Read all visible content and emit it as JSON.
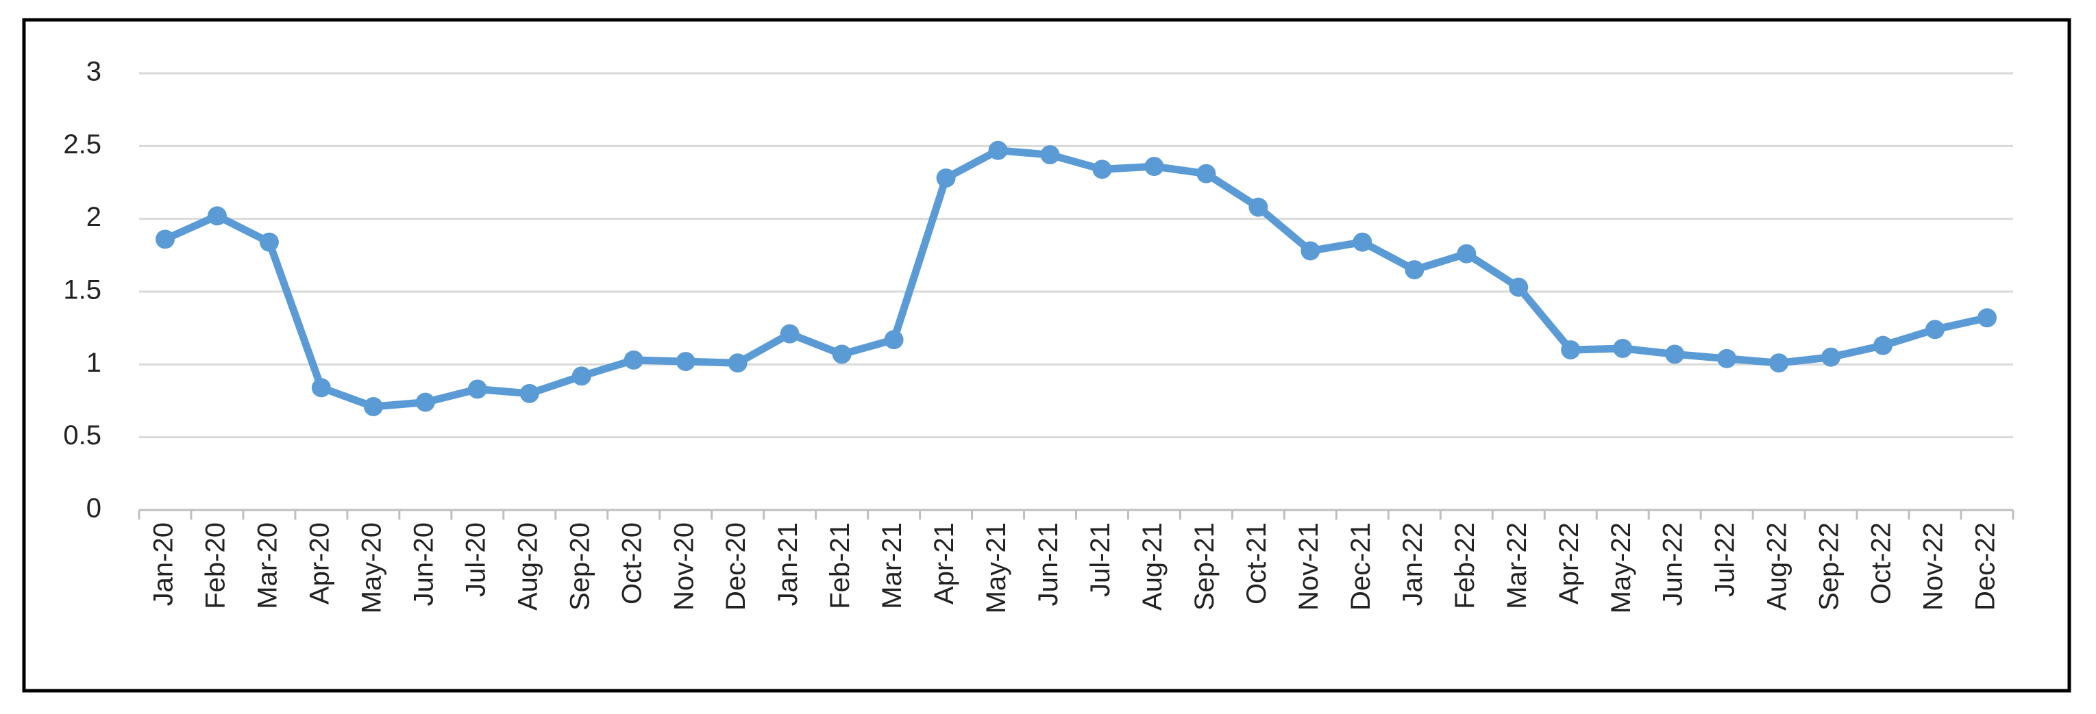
{
  "chart_data": {
    "type": "line",
    "categories": [
      "Jan-20",
      "Feb-20",
      "Mar-20",
      "Apr-20",
      "May-20",
      "Jun-20",
      "Jul-20",
      "Aug-20",
      "Sep-20",
      "Oct-20",
      "Nov-20",
      "Dec-20",
      "Jan-21",
      "Feb-21",
      "Mar-21",
      "Apr-21",
      "May-21",
      "Jun-21",
      "Jul-21",
      "Aug-21",
      "Sep-21",
      "Oct-21",
      "Nov-21",
      "Dec-21",
      "Jan-22",
      "Feb-22",
      "Mar-22",
      "Apr-22",
      "May-22",
      "Jun-22",
      "Jul-22",
      "Aug-22",
      "Sep-22",
      "Oct-22",
      "Nov-22",
      "Dec-22"
    ],
    "values": [
      1.86,
      2.02,
      1.84,
      0.84,
      0.71,
      0.74,
      0.83,
      0.8,
      0.92,
      1.03,
      1.02,
      1.01,
      1.21,
      1.07,
      1.17,
      2.28,
      2.47,
      2.44,
      2.34,
      2.36,
      2.31,
      2.08,
      1.78,
      1.84,
      1.65,
      1.76,
      1.53,
      1.1,
      1.11,
      1.07,
      1.04,
      1.01,
      1.05,
      1.13,
      1.24,
      1.32
    ],
    "color": "#5b9bd5",
    "ylim": [
      0,
      3
    ],
    "yticks": [
      0,
      0.5,
      1,
      1.5,
      2,
      2.5,
      3
    ],
    "grid": true
  }
}
